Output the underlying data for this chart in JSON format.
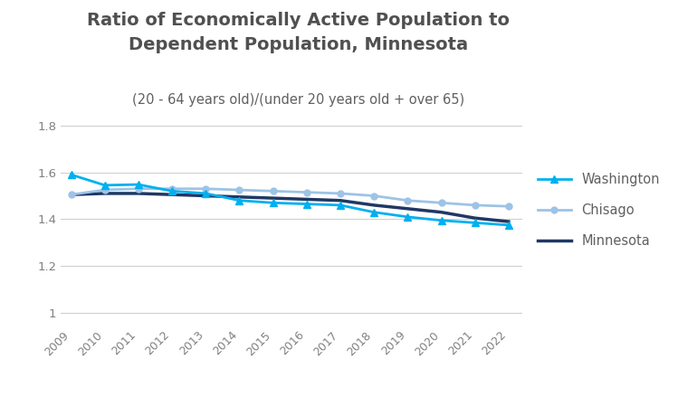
{
  "title_line1": "Ratio of Economically Active Population to\nDependent Population, Minnesota",
  "subtitle": "(20 - 64 years old)/(under 20 years old + over 65)",
  "years": [
    2009,
    2010,
    2011,
    2012,
    2013,
    2014,
    2015,
    2016,
    2017,
    2018,
    2019,
    2020,
    2021,
    2022
  ],
  "washington": [
    1.59,
    1.545,
    1.548,
    1.52,
    1.51,
    1.48,
    1.47,
    1.465,
    1.46,
    1.43,
    1.41,
    1.395,
    1.385,
    1.375
  ],
  "chisago": [
    1.505,
    1.525,
    1.53,
    1.53,
    1.53,
    1.525,
    1.52,
    1.515,
    1.51,
    1.5,
    1.48,
    1.47,
    1.46,
    1.455
  ],
  "minnesota": [
    1.505,
    1.51,
    1.51,
    1.505,
    1.5,
    1.495,
    1.49,
    1.485,
    1.48,
    1.46,
    1.445,
    1.43,
    1.405,
    1.39
  ],
  "washington_color": "#00B0F0",
  "chisago_color": "#9DC3E6",
  "minnesota_color": "#1F3864",
  "ylim": [
    0.95,
    1.85
  ],
  "yticks": [
    1.0,
    1.2,
    1.4,
    1.6,
    1.8
  ],
  "background_color": "#ffffff",
  "title_fontsize": 14,
  "subtitle_fontsize": 10.5,
  "legend_fontsize": 10.5,
  "tick_color": "#808080"
}
